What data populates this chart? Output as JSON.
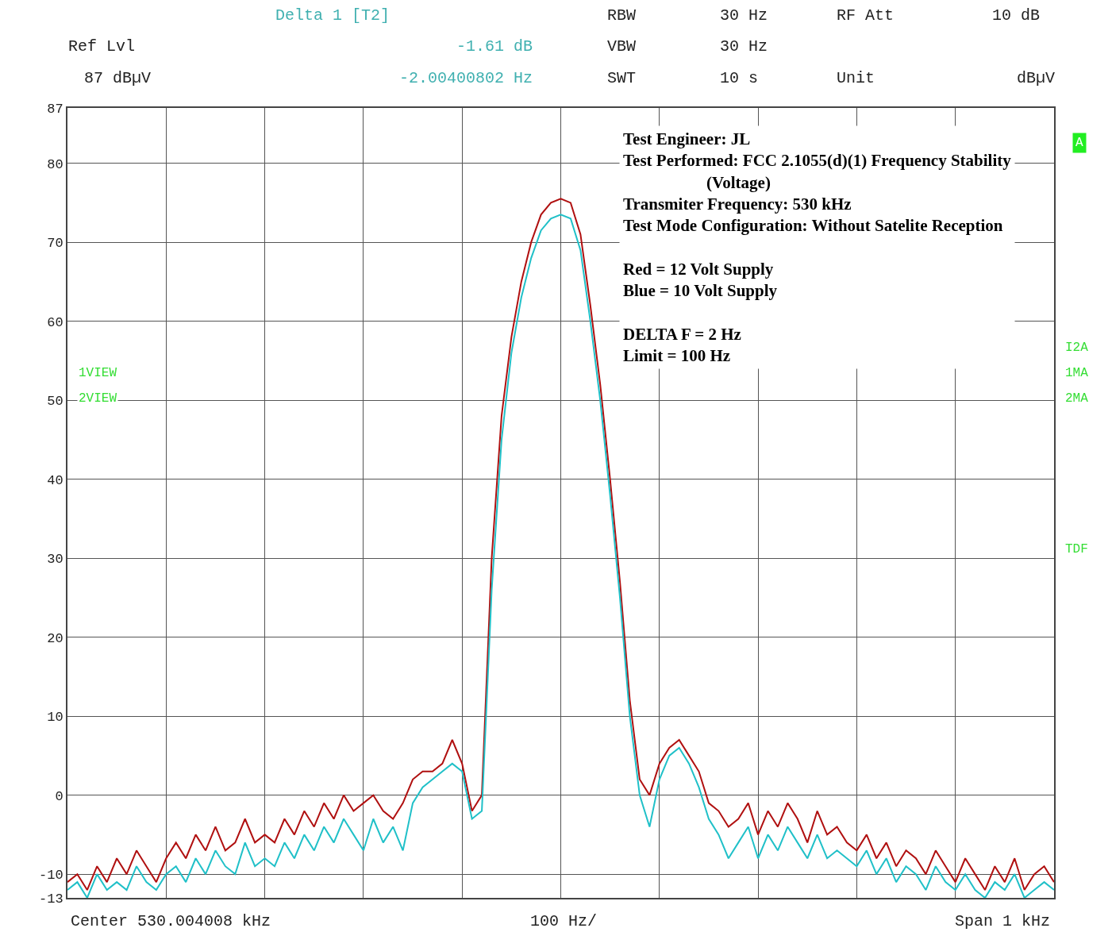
{
  "chart_data": {
    "type": "line",
    "categories": [
      null,
      null,
      null,
      null,
      null,
      null,
      null,
      null,
      null,
      null,
      null,
      null,
      null,
      null,
      null,
      null,
      null,
      null,
      null,
      null,
      null,
      null,
      null,
      null,
      null,
      null,
      null,
      null,
      null,
      null,
      null,
      null,
      null,
      null,
      null,
      null,
      null,
      null,
      null,
      null,
      null,
      null,
      null,
      null,
      null,
      null,
      null,
      null,
      null,
      null,
      null,
      null,
      null,
      null,
      null,
      null,
      null,
      null,
      null,
      null,
      null,
      null,
      null,
      null,
      null,
      null,
      null,
      null,
      null,
      null,
      null,
      null,
      null,
      null,
      null,
      null,
      null,
      null,
      null,
      null,
      null,
      null,
      null,
      null,
      null,
      null,
      null,
      null,
      null,
      null,
      null,
      null,
      null,
      null,
      null,
      null,
      null,
      null,
      null,
      null,
      null
    ],
    "series": [
      {
        "color": "#b01010",
        "values": [
          -11,
          -10,
          -12,
          -9,
          -11,
          -8,
          -10,
          -7,
          -9,
          -11,
          -8,
          -6,
          -8,
          -5,
          -7,
          -4,
          -7,
          -6,
          -3,
          -6,
          -5,
          -6,
          -3,
          -5,
          -2,
          -4,
          -1,
          -3,
          0,
          -2,
          -1,
          0,
          -2,
          -3,
          -1,
          2,
          3,
          3,
          4,
          7,
          4,
          -2,
          0,
          30,
          48,
          58,
          65,
          70,
          73.5,
          75,
          75.5,
          75,
          71,
          62,
          52,
          40,
          27,
          12,
          2,
          0,
          4,
          6,
          7,
          5,
          3,
          -1,
          -2,
          -4,
          -3,
          -1,
          -5,
          -2,
          -4,
          -1,
          -3,
          -6,
          -2,
          -5,
          -4,
          -6,
          -7,
          -5,
          -8,
          -6,
          -9,
          -7,
          -8,
          -10,
          -7,
          -9,
          -11,
          -8,
          -10,
          -12,
          -9,
          -11,
          -8,
          -12,
          -10,
          -9,
          -11
        ]
      },
      {
        "color": "#20c0c8",
        "values": [
          -12,
          -11,
          -13,
          -10,
          -12,
          -11,
          -12,
          -9,
          -11,
          -12,
          -10,
          -9,
          -11,
          -8,
          -10,
          -7,
          -9,
          -10,
          -6,
          -9,
          -8,
          -9,
          -6,
          -8,
          -5,
          -7,
          -4,
          -6,
          -3,
          -5,
          -7,
          -3,
          -6,
          -4,
          -7,
          -1,
          1,
          2,
          3,
          4,
          3,
          -3,
          -2,
          26,
          45,
          56,
          63,
          68,
          71.5,
          73,
          73.5,
          73,
          69,
          60,
          50,
          38,
          25,
          10,
          0,
          -4,
          2,
          5,
          6,
          4,
          1,
          -3,
          -5,
          -8,
          -6,
          -4,
          -8,
          -5,
          -7,
          -4,
          -6,
          -8,
          -5,
          -8,
          -7,
          -8,
          -9,
          -7,
          -10,
          -8,
          -11,
          -9,
          -10,
          -12,
          -9,
          -11,
          -12,
          -10,
          -12,
          -13,
          -11,
          -12,
          -10,
          -13,
          -12,
          -11,
          -12
        ]
      }
    ],
    "ylim": [
      -13,
      87
    ],
    "yticks": [
      -13,
      -10,
      0,
      10,
      20,
      30,
      40,
      50,
      60,
      70,
      80,
      87
    ],
    "grid": true,
    "tick_labels": "y",
    "marker": "none",
    "line_style": "solid",
    "annotations": [
      "Delta 1 [T2]",
      "Ref Lvl",
      "-1.61 dB",
      "87 dBµV",
      "-2.00400802 Hz",
      "RBW",
      "30 Hz",
      "RF Att",
      "10 dB",
      "VBW",
      "30 Hz",
      "SWT",
      "10 s",
      "Unit",
      "dBµV",
      "A",
      "1VIEW",
      "2VIEW",
      "I2A",
      "1MA",
      "2MA",
      "TDF",
      "Center 530.004008 kHz",
      "100 Hz/",
      "Span 1 kHz",
      "Test Engineer: JL\nTest Performed: FCC 2.1055(d)(1) Frequency Stability\n                    (Voltage)\nTransmiter Frequency: 530 kHz\nTest Mode Configuration: Without Satelite Reception\n\nRed = 12 Volt Supply\nBlue = 10 Volt Supply\n\nDELTA F = 2 Hz\nLimit = 100 Hz"
    ]
  }
}
